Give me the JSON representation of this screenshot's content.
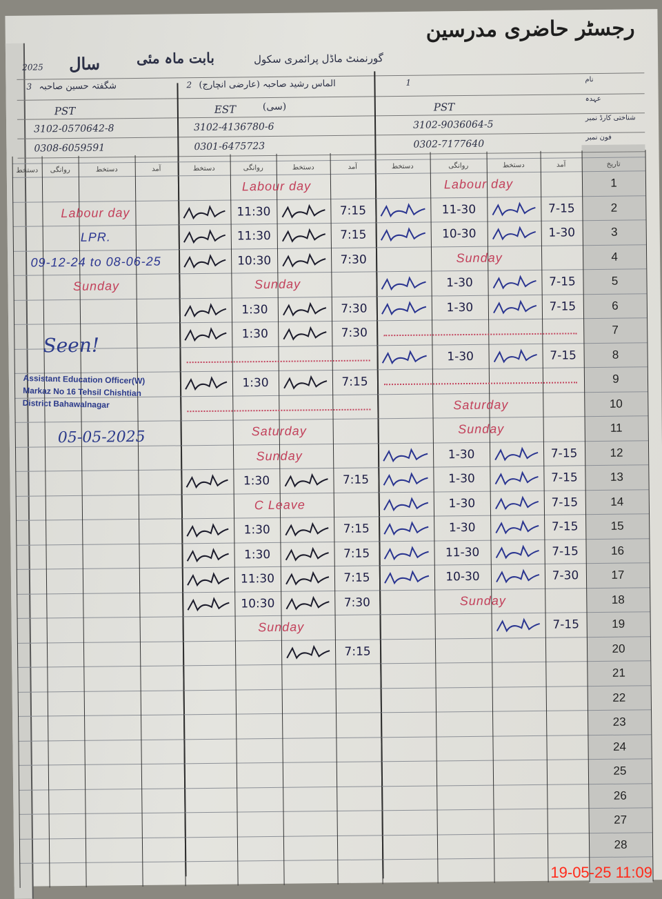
{
  "header": {
    "title": "رجسٹر حاضری مدرسین",
    "school": "گورنمنٹ ماڈل پرائمری سکول",
    "month_label": "بابت ماہ مئی",
    "year_label": "سال",
    "year": "2025"
  },
  "teachers": [
    {
      "name": "شگفتہ حسین صاحبہ",
      "index": "3",
      "post": "PST",
      "cnic": "3102-0570642-8",
      "phone": "0308-6059591"
    },
    {
      "name": "الماس رشید صاحبہ (عارضی انچارج)",
      "index": "2",
      "post": "EST",
      "post_note": "(سی)",
      "cnic": "3102-4136780-6",
      "phone": "0301-6475723"
    },
    {
      "name": "",
      "index": "1",
      "post": "PST",
      "cnic": "3102-9036064-5",
      "phone": "0302-7177640"
    }
  ],
  "row_labels": [
    "نام",
    "عہدہ",
    "شناختی کارڈ نمبر",
    "فون نمبر"
  ],
  "column_headers": {
    "signature": "دستخط",
    "departure": "روانگی",
    "arrival": "آمد",
    "date": "تاریخ"
  },
  "ink_colors": {
    "red": "#c2405a",
    "blue": "#2a3590",
    "black": "#1c1c2c"
  },
  "rows": [
    {
      "n": "1",
      "left": {},
      "mid": {
        "note": "Labour day",
        "ink": "red"
      },
      "right": {
        "note": "Labour day",
        "ink": "red"
      }
    },
    {
      "n": "2",
      "left": {
        "note": "Labour day",
        "ink": "red"
      },
      "mid": {
        "sig": true,
        "out": "11:30",
        "in": "7:15"
      },
      "right": {
        "sig": true,
        "out": "11-30",
        "in": "7-15"
      }
    },
    {
      "n": "3",
      "left": {
        "note": "LPR.",
        "ink": "blue"
      },
      "mid": {
        "sig": true,
        "out": "11:30",
        "in": "7:15"
      },
      "right": {
        "sig": true,
        "out": "10-30",
        "in": "1-30"
      }
    },
    {
      "n": "4",
      "left": {
        "note": "09-12-24 to 08-06-25",
        "ink": "blue"
      },
      "mid": {
        "sig": true,
        "out": "10:30",
        "in": "7:30"
      },
      "right": {
        "note": "Sunday",
        "ink": "red"
      }
    },
    {
      "n": "5",
      "left": {
        "note": "Sunday",
        "ink": "red"
      },
      "mid": {
        "note": "Sunday",
        "ink": "red"
      },
      "right": {
        "sig": true,
        "out": "1-30",
        "in": "7-15"
      }
    },
    {
      "n": "6",
      "left": {},
      "mid": {
        "sig": true,
        "out": "1:30",
        "in": "7:30"
      },
      "right": {
        "sig": true,
        "out": "1-30",
        "in": "7-15"
      }
    },
    {
      "n": "7",
      "left": {},
      "mid": {
        "sig": true,
        "out": "1:30",
        "in": "7:30"
      },
      "right": {
        "scribble": true,
        "ink": "red"
      }
    },
    {
      "n": "8",
      "left": {},
      "mid": {
        "scribble": true,
        "ink": "red"
      },
      "right": {
        "sig": true,
        "out": "1-30",
        "in": "7-15"
      }
    },
    {
      "n": "9",
      "left": {},
      "mid": {
        "sig": true,
        "out": "1:30",
        "in": "7:15"
      },
      "right": {
        "scribble": true,
        "ink": "red"
      }
    },
    {
      "n": "10",
      "left": {},
      "mid": {
        "scribble": true,
        "ink": "red"
      },
      "right": {
        "note": "Saturday",
        "ink": "red"
      }
    },
    {
      "n": "11",
      "left": {},
      "mid": {
        "note": "Saturday",
        "ink": "red"
      },
      "right": {
        "note": "Sunday",
        "ink": "red"
      }
    },
    {
      "n": "12",
      "left": {},
      "mid": {
        "note": "Sunday",
        "ink": "red"
      },
      "right": {
        "sig": true,
        "out": "1-30",
        "in": "7-15"
      }
    },
    {
      "n": "13",
      "left": {},
      "mid": {
        "sig": true,
        "out": "1:30",
        "in": "7:15"
      },
      "right": {
        "sig": true,
        "out": "1-30",
        "in": "7-15"
      }
    },
    {
      "n": "14",
      "left": {},
      "mid": {
        "note": "C Leave",
        "ink": "red"
      },
      "right": {
        "sig": true,
        "out": "1-30",
        "in": "7-15"
      }
    },
    {
      "n": "15",
      "left": {},
      "mid": {
        "sig": true,
        "out": "1:30",
        "in": "7:15"
      },
      "right": {
        "sig": true,
        "out": "1-30",
        "in": "7-15"
      }
    },
    {
      "n": "16",
      "left": {},
      "mid": {
        "sig": true,
        "out": "1:30",
        "in": "7:15"
      },
      "right": {
        "sig": true,
        "out": "11-30",
        "in": "7-15"
      }
    },
    {
      "n": "17",
      "left": {},
      "mid": {
        "sig": true,
        "out": "11:30",
        "in": "7:15"
      },
      "right": {
        "sig": true,
        "out": "10-30",
        "in": "7-30"
      }
    },
    {
      "n": "18",
      "left": {},
      "mid": {
        "sig": true,
        "out": "10:30",
        "in": "7:30"
      },
      "right": {
        "note": "Sunday",
        "ink": "red"
      }
    },
    {
      "n": "19",
      "left": {},
      "mid": {
        "note": "Sunday",
        "ink": "red"
      },
      "right": {
        "sigIn": true,
        "in": "7-15"
      }
    },
    {
      "n": "20",
      "left": {},
      "mid": {
        "sigIn": true,
        "in": "7:15"
      },
      "right": {}
    },
    {
      "n": "21",
      "left": {},
      "mid": {},
      "right": {}
    },
    {
      "n": "22",
      "left": {},
      "mid": {},
      "right": {}
    },
    {
      "n": "23",
      "left": {},
      "mid": {},
      "right": {}
    },
    {
      "n": "24",
      "left": {},
      "mid": {},
      "right": {}
    },
    {
      "n": "25",
      "left": {},
      "mid": {},
      "right": {}
    },
    {
      "n": "26",
      "left": {},
      "mid": {},
      "right": {}
    },
    {
      "n": "27",
      "left": {},
      "mid": {},
      "right": {}
    },
    {
      "n": "28",
      "left": {},
      "mid": {},
      "right": {}
    }
  ],
  "inspection": {
    "remark": "Seen!",
    "stamp_lines": [
      "Assistant Education Officer(W)",
      "Markaz No 16 Tehsil Chishtian",
      "District Bahawalnagar"
    ],
    "date": "05-05-2025"
  },
  "camera_timestamp": "19-05-25  11:09"
}
